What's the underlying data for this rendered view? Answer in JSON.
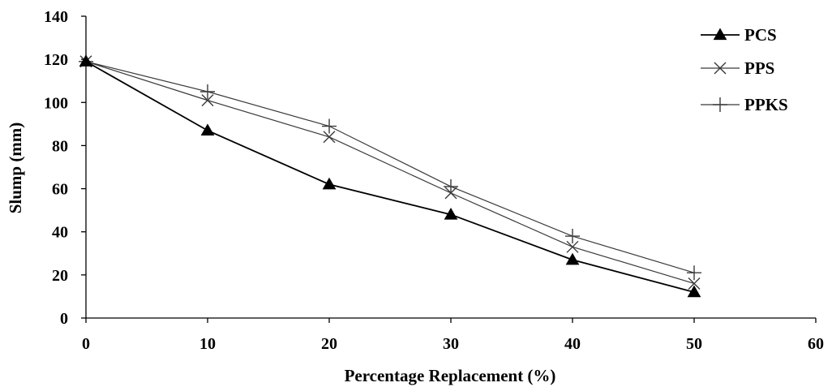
{
  "chart_data": {
    "type": "line",
    "title": "",
    "xlabel": "Percentage Replacement (%)",
    "ylabel": "Slump (mm)",
    "xlim": [
      0,
      60
    ],
    "ylim": [
      0,
      140
    ],
    "xticks": [
      "0",
      "10",
      "20",
      "30",
      "40",
      "50",
      "60"
    ],
    "yticks": [
      "0",
      "20",
      "40",
      "60",
      "80",
      "100",
      "120",
      "140"
    ],
    "grid": false,
    "legend_position": "top-right",
    "x": [
      0,
      10,
      20,
      30,
      40,
      50
    ],
    "series": [
      {
        "name": "PCS",
        "marker": "triangle",
        "values": [
          119,
          87,
          62,
          48,
          27,
          12
        ]
      },
      {
        "name": "PPS",
        "marker": "x",
        "values": [
          119,
          101,
          84,
          58,
          33,
          16
        ]
      },
      {
        "name": "PPKS",
        "marker": "plus",
        "values": [
          119,
          105,
          89,
          61,
          38,
          21
        ]
      }
    ]
  },
  "colors": {
    "PCS": "#000000",
    "PPS": "#3a3a3a",
    "PPKS": "#3a3a3a",
    "axis": "#000000"
  }
}
